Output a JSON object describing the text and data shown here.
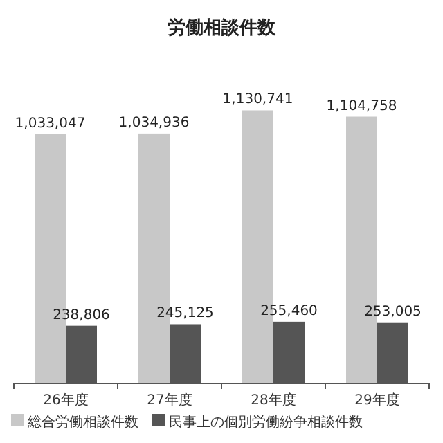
{
  "chart_data": {
    "type": "bar",
    "title": "労働相談件数",
    "categories": [
      "26年度",
      "27年度",
      "28年度",
      "29年度"
    ],
    "series": [
      {
        "name": "総合労働相談件数",
        "color": "#c8c8c8",
        "values": [
          1033047,
          1034936,
          1130741,
          1104758
        ],
        "value_labels": [
          "1,033,047",
          "1,034,936",
          "1,130,741",
          "1,104,758"
        ]
      },
      {
        "name": "民事上の個別労働紛争相談件数",
        "color": "#555555",
        "values": [
          238806,
          245125,
          255460,
          253005
        ],
        "value_labels": [
          "238,806",
          "245,125",
          "255,460",
          "253,005"
        ]
      }
    ],
    "legend": "bottom",
    "grid": false
  }
}
